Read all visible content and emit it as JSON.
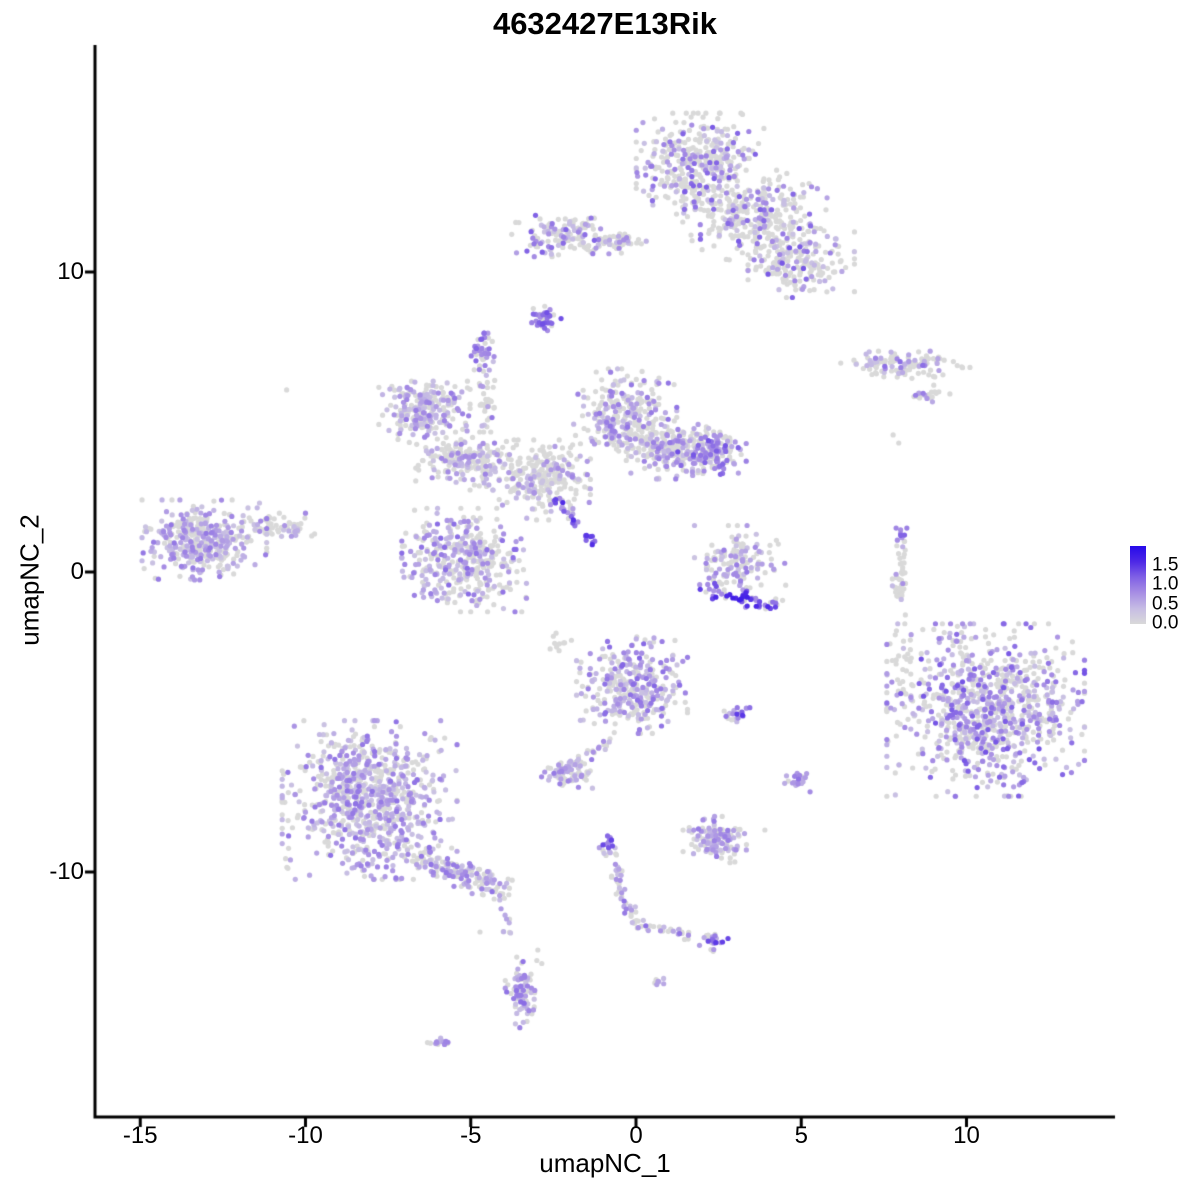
{
  "title": "4632427E13Rik",
  "axes": {
    "x_label": "umapNC_1",
    "y_label": "umapNC_2",
    "x_ticks": [
      -15,
      -10,
      -5,
      0,
      5,
      10
    ],
    "x_tick_labels": [
      "-15",
      "-10",
      "-5",
      "0",
      "5",
      "10"
    ],
    "y_ticks": [
      10,
      0,
      -10
    ],
    "y_tick_labels": [
      "10",
      "0",
      "-10"
    ],
    "x_range": [
      -16.4,
      14.5
    ],
    "y_range": [
      -17.6,
      17.6
    ]
  },
  "legend": {
    "tick_values": [
      1.5,
      1.0,
      0.5,
      0.0
    ],
    "labels": [
      "1.5",
      "1.0",
      "0.5",
      "0.0"
    ],
    "vmin": 0.0,
    "vmax": 2.0
  },
  "colors": {
    "background": "#ffffff",
    "axis": "#000000",
    "zero_expression": "#d9d9d9",
    "colormap_stops": [
      [
        0.0,
        217,
        217,
        217
      ],
      [
        0.4,
        198,
        188,
        228
      ],
      [
        0.8,
        167,
        142,
        228
      ],
      [
        1.2,
        128,
        97,
        229
      ],
      [
        1.6,
        77,
        40,
        230
      ],
      [
        2.0,
        38,
        10,
        234
      ]
    ]
  },
  "chart_data": {
    "type": "scatter",
    "title": "4632427E13Rik",
    "xlabel": "umapNC_1",
    "ylabel": "umapNC_2",
    "xlim": [
      -16.4,
      14.5
    ],
    "ylim": [
      -17.6,
      17.6
    ],
    "grid": false,
    "legend_position": "right",
    "point_radius_px": 2.6,
    "value_is": "gene expression level, 0.0 (grey) to ~2.0 (blue)",
    "clusters": [
      {
        "kind": "blob",
        "x": 1.94,
        "y": 13.57,
        "sx": 0.84,
        "sy": 0.75,
        "n": 380,
        "frac": 0.32,
        "vlo": 0.3,
        "vhi": 1.25
      },
      {
        "kind": "blob",
        "x": 3.6,
        "y": 11.9,
        "sx": 0.95,
        "sy": 0.65,
        "n": 300,
        "frac": 0.3,
        "vlo": 0.3,
        "vhi": 1.25
      },
      {
        "kind": "blob",
        "x": 5.0,
        "y": 10.3,
        "sx": 0.7,
        "sy": 0.5,
        "n": 190,
        "frac": 0.3,
        "vlo": 0.3,
        "vhi": 1.3
      },
      {
        "kind": "blob",
        "x": -2.15,
        "y": 11.2,
        "sx": 0.7,
        "sy": 0.3,
        "n": 130,
        "frac": 0.35,
        "vlo": 0.3,
        "vhi": 1.2
      },
      {
        "kind": "blob",
        "x": -0.6,
        "y": 11.0,
        "sx": 0.5,
        "sy": 0.17,
        "n": 55,
        "frac": 0.25,
        "vlo": 0.3,
        "vhi": 1.0
      },
      {
        "kind": "blob",
        "x": -2.7,
        "y": 8.45,
        "sx": 0.2,
        "sy": 0.2,
        "n": 40,
        "frac": 0.75,
        "vlo": 0.8,
        "vhi": 1.35
      },
      {
        "kind": "blob",
        "x": 8.15,
        "y": 6.9,
        "sx": 0.85,
        "sy": 0.2,
        "n": 115,
        "frac": 0.4,
        "vlo": 0.3,
        "vhi": 1.25
      },
      {
        "kind": "blob",
        "x": 8.85,
        "y": 5.95,
        "sx": 0.3,
        "sy": 0.12,
        "n": 20,
        "frac": 0.3,
        "vlo": 0.3,
        "vhi": 1.0
      },
      {
        "kind": "blob",
        "x": -6.4,
        "y": 5.4,
        "sx": 0.6,
        "sy": 0.47,
        "n": 240,
        "frac": 0.5,
        "vlo": 0.3,
        "vhi": 1.0
      },
      {
        "kind": "blob",
        "x": -5.1,
        "y": 3.7,
        "sx": 0.68,
        "sy": 0.42,
        "n": 200,
        "frac": 0.35,
        "vlo": 0.3,
        "vhi": 0.9
      },
      {
        "kind": "blob",
        "x": -5.2,
        "y": 0.4,
        "sx": 0.82,
        "sy": 0.75,
        "n": 390,
        "frac": 0.45,
        "vlo": 0.3,
        "vhi": 1.1
      },
      {
        "kind": "blob",
        "x": -2.76,
        "y": 3.07,
        "sx": 0.6,
        "sy": 0.58,
        "n": 260,
        "frac": 0.25,
        "vlo": 0.3,
        "vhi": 0.9
      },
      {
        "kind": "line",
        "x1": -4.51,
        "y1": 4.9,
        "x2": -4.63,
        "y2": 7.2,
        "jx": 0.13,
        "jy": 0.2,
        "n": 45,
        "frac": 0.4,
        "vlo": 0.3,
        "vhi": 1.0
      },
      {
        "kind": "blob",
        "x": -4.64,
        "y": 7.5,
        "sx": 0.15,
        "sy": 0.2,
        "n": 30,
        "frac": 0.7,
        "vlo": 0.6,
        "vhi": 1.2
      },
      {
        "kind": "blob",
        "x": -0.33,
        "y": 5.23,
        "sx": 0.68,
        "sy": 0.67,
        "n": 290,
        "frac": 0.45,
        "vlo": 0.3,
        "vhi": 1.05
      },
      {
        "kind": "blob",
        "x": 1.27,
        "y": 4.07,
        "sx": 0.68,
        "sy": 0.42,
        "n": 230,
        "frac": 0.35,
        "vlo": 0.3,
        "vhi": 1.0
      },
      {
        "kind": "blob",
        "x": 2.3,
        "y": 4.0,
        "sx": 0.45,
        "sy": 0.34,
        "n": 140,
        "frac": 0.6,
        "vlo": 0.5,
        "vhi": 1.35
      },
      {
        "kind": "line",
        "x1": -2.54,
        "y1": 2.47,
        "x2": -1.09,
        "y2": 0.8,
        "jx": 0.08,
        "jy": 0.08,
        "n": 30,
        "frac": 0.85,
        "vlo": 0.6,
        "vhi": 1.7
      },
      {
        "kind": "blob",
        "x": -13.06,
        "y": 1.07,
        "sx": 0.82,
        "sy": 0.58,
        "n": 400,
        "frac": 0.55,
        "vlo": 0.3,
        "vhi": 1.0
      },
      {
        "kind": "blob",
        "x": -10.6,
        "y": 1.5,
        "sx": 0.4,
        "sy": 0.2,
        "n": 55,
        "frac": 0.3,
        "vlo": 0.3,
        "vhi": 0.9
      },
      {
        "kind": "blob",
        "x": 3.15,
        "y": 0.4,
        "sx": 0.6,
        "sy": 0.5,
        "n": 130,
        "frac": 0.45,
        "vlo": 0.3,
        "vhi": 1.0
      },
      {
        "kind": "line",
        "x1": 1.94,
        "y1": -0.53,
        "x2": 4.36,
        "y2": -1.17,
        "jx": 0.15,
        "jy": 0.12,
        "n": 55,
        "frac": 0.75,
        "vlo": 0.7,
        "vhi": 1.75
      },
      {
        "kind": "line",
        "x1": 8.06,
        "y1": 1.2,
        "x2": 7.94,
        "y2": -1.0,
        "jx": 0.1,
        "jy": 0.1,
        "n": 40,
        "frac": 0.12,
        "vlo": 0.3,
        "vhi": 1.0
      },
      {
        "kind": "blob",
        "x": 8.06,
        "y": 1.3,
        "sx": 0.12,
        "sy": 0.15,
        "n": 8,
        "frac": 0.8,
        "vlo": 0.7,
        "vhi": 1.3
      },
      {
        "kind": "blob",
        "x": 10.58,
        "y": -4.6,
        "sx": 1.3,
        "sy": 1.25,
        "n": 880,
        "frac": 0.55,
        "vlo": 0.3,
        "vhi": 1.3
      },
      {
        "kind": "blob",
        "x": 8.1,
        "y": -3.2,
        "sx": 0.18,
        "sy": 0.7,
        "n": 22,
        "frac": 0.15,
        "vlo": 0.3,
        "vhi": 0.8
      },
      {
        "kind": "blob",
        "x": -0.12,
        "y": -3.77,
        "sx": 0.73,
        "sy": 0.7,
        "n": 330,
        "frac": 0.58,
        "vlo": 0.3,
        "vhi": 1.15
      },
      {
        "kind": "line",
        "x1": -0.73,
        "y1": -5.6,
        "x2": -2.06,
        "y2": -6.5,
        "jx": 0.1,
        "jy": 0.1,
        "n": 28,
        "frac": 0.6,
        "vlo": 0.3,
        "vhi": 1.0
      },
      {
        "kind": "blob",
        "x": -2.1,
        "y": -6.7,
        "sx": 0.34,
        "sy": 0.22,
        "n": 70,
        "frac": 0.6,
        "vlo": 0.3,
        "vhi": 1.0
      },
      {
        "kind": "blob",
        "x": 3.03,
        "y": -4.8,
        "sx": 0.18,
        "sy": 0.12,
        "n": 22,
        "frac": 0.5,
        "vlo": 0.4,
        "vhi": 1.5
      },
      {
        "kind": "blob",
        "x": -8.06,
        "y": -7.6,
        "sx": 1.15,
        "sy": 1.15,
        "n": 850,
        "frac": 0.58,
        "vlo": 0.3,
        "vhi": 1.05
      },
      {
        "kind": "line",
        "x1": -6.54,
        "y1": -9.43,
        "x2": -4.0,
        "y2": -10.72,
        "jx": 0.3,
        "jy": 0.18,
        "n": 150,
        "frac": 0.5,
        "vlo": 0.3,
        "vhi": 1.05
      },
      {
        "kind": "line",
        "x1": -4.1,
        "y1": -10.8,
        "x2": -3.8,
        "y2": -12.1,
        "jx": 0.08,
        "jy": 0.1,
        "n": 10,
        "frac": 0.3,
        "vlo": 0.3,
        "vhi": 0.8
      },
      {
        "kind": "blob",
        "x": 4.88,
        "y": -6.93,
        "sx": 0.2,
        "sy": 0.2,
        "n": 22,
        "frac": 0.75,
        "vlo": 0.5,
        "vhi": 1.05
      },
      {
        "kind": "blob",
        "x": 2.39,
        "y": -8.93,
        "sx": 0.42,
        "sy": 0.34,
        "n": 140,
        "frac": 0.65,
        "vlo": 0.3,
        "vhi": 0.95
      },
      {
        "kind": "line",
        "x1": -0.85,
        "y1": -9.1,
        "x2": -0.18,
        "y2": -11.6,
        "jx": 0.12,
        "jy": 0.12,
        "n": 48,
        "frac": 0.55,
        "vlo": 0.3,
        "vhi": 1.2
      },
      {
        "kind": "blob",
        "x": -0.85,
        "y": -9.0,
        "sx": 0.12,
        "sy": 0.12,
        "n": 12,
        "frac": 0.85,
        "vlo": 0.8,
        "vhi": 1.45
      },
      {
        "kind": "line",
        "x1": -0.18,
        "y1": -11.65,
        "x2": 2.3,
        "y2": -12.3,
        "jx": 0.12,
        "jy": 0.1,
        "n": 35,
        "frac": 0.5,
        "vlo": 0.3,
        "vhi": 1.1
      },
      {
        "kind": "blob",
        "x": 2.37,
        "y": -12.3,
        "sx": 0.18,
        "sy": 0.15,
        "n": 26,
        "frac": 0.7,
        "vlo": 0.5,
        "vhi": 1.5
      },
      {
        "kind": "blob",
        "x": -3.45,
        "y": -14.1,
        "sx": 0.22,
        "sy": 0.55,
        "n": 85,
        "frac": 0.65,
        "vlo": 0.3,
        "vhi": 1.15
      },
      {
        "kind": "blob",
        "x": -5.94,
        "y": -15.7,
        "sx": 0.18,
        "sy": 0.1,
        "n": 18,
        "frac": 0.8,
        "vlo": 0.4,
        "vhi": 0.95
      },
      {
        "kind": "blob",
        "x": 0.73,
        "y": -13.67,
        "sx": 0.08,
        "sy": 0.07,
        "n": 7,
        "frac": 0.8,
        "vlo": 0.4,
        "vhi": 1.0
      },
      {
        "kind": "blob",
        "x": -2.4,
        "y": -2.3,
        "sx": 0.25,
        "sy": 0.3,
        "n": 10,
        "frac": 0.0,
        "vlo": 0.3,
        "vhi": 0.5
      },
      {
        "kind": "points",
        "pts": [
          [
            -10.57,
            6.07,
            0
          ],
          [
            7.78,
            4.57,
            0
          ],
          [
            7.95,
            4.3,
            0
          ],
          [
            -4.72,
            -12.0,
            0
          ],
          [
            -2.97,
            -12.6,
            0
          ],
          [
            -2.85,
            -13.05,
            0
          ],
          [
            8.15,
            -1.43,
            0
          ],
          [
            8.3,
            -2.27,
            0
          ],
          [
            3.9,
            -8.6,
            0
          ],
          [
            -3.0,
            -12.95,
            0
          ]
        ]
      }
    ]
  }
}
